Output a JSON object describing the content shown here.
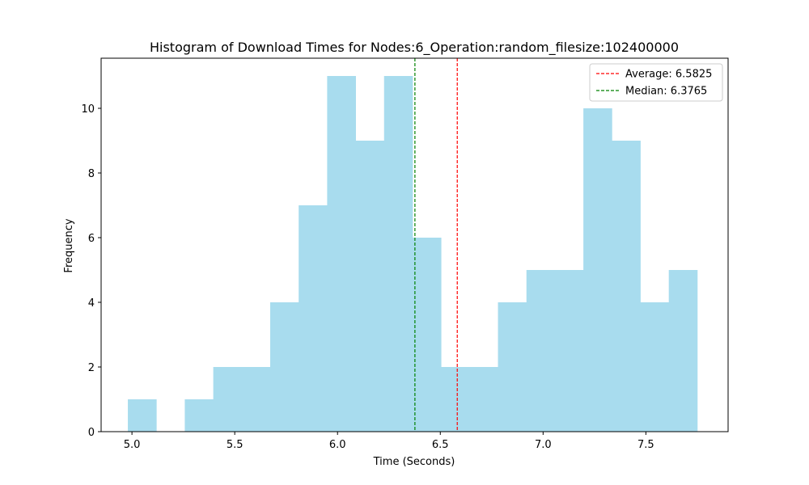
{
  "chart_data": {
    "type": "bar",
    "title": "Histogram of Download Times for Nodes:6_Operation:random_filesize:102400000",
    "xlabel": "Time (Seconds)",
    "ylabel": "Frequency",
    "xlim": [
      4.85,
      7.9
    ],
    "ylim": [
      0,
      11.55
    ],
    "bin_start": 4.98,
    "bin_width": 0.1385,
    "values": [
      1,
      0,
      1,
      2,
      2,
      4,
      7,
      11,
      9,
      11,
      6,
      2,
      2,
      4,
      5,
      5,
      10,
      9,
      4,
      5
    ],
    "bar_color": "#a8dcee",
    "x_ticks": [
      5.0,
      5.5,
      6.0,
      6.5,
      7.0,
      7.5
    ],
    "x_tick_labels": [
      "5.0",
      "5.5",
      "6.0",
      "6.5",
      "7.0",
      "7.5"
    ],
    "y_ticks": [
      0,
      2,
      4,
      6,
      8,
      10
    ],
    "y_tick_labels": [
      "0",
      "2",
      "4",
      "6",
      "8",
      "10"
    ],
    "grid": false,
    "legend_position": "top-right",
    "lines": [
      {
        "name": "Average: 6.5825",
        "x": 6.5825,
        "color": "#ff0000",
        "style": "dashed"
      },
      {
        "name": "Median: 6.3765",
        "x": 6.3765,
        "color": "#008000",
        "style": "dashed"
      }
    ]
  }
}
